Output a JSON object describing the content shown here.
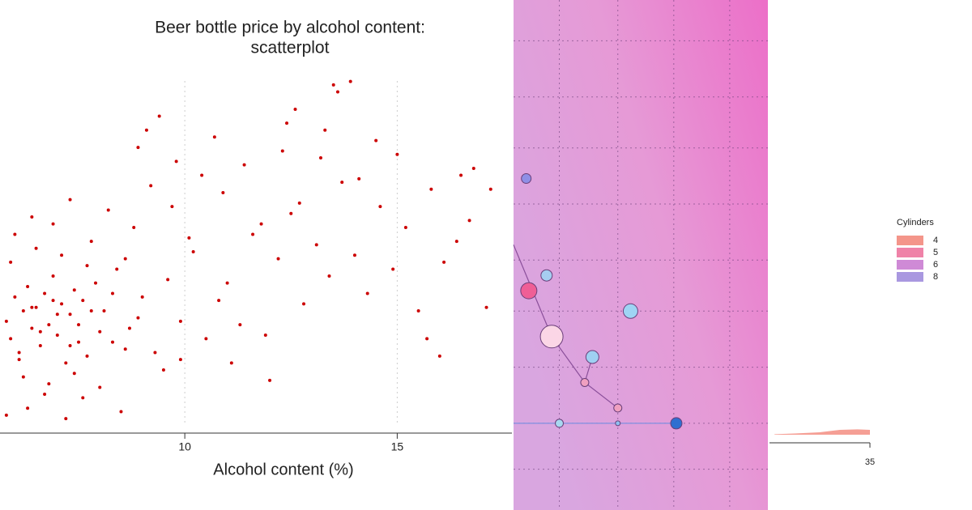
{
  "chart_data": [
    {
      "type": "scatter",
      "title": [
        "Beer bottle price by alcohol content:",
        "scatterplot"
      ],
      "x_label": "Alcohol content (%)",
      "xlim": [
        5.65,
        17.7
      ],
      "xticks": [
        10,
        15
      ],
      "ylim": [
        0,
        10.2
      ],
      "color": "#cc0000",
      "grid": true,
      "series": [
        {
          "name": null,
          "x": [
            5.8,
            5.9,
            6.0,
            6.1,
            6.2,
            6.3,
            6.4,
            6.5,
            6.6,
            6.7,
            6.8,
            6.9,
            7.0,
            7.1,
            7.2,
            7.3,
            7.4,
            7.5,
            7.6,
            7.7,
            5.9,
            6.2,
            6.5,
            6.8,
            7.1,
            7.4,
            7.7,
            8.0,
            8.3,
            8.6,
            8.1,
            8.4,
            8.7,
            9.0,
            9.3,
            9.6,
            9.9,
            10.2,
            10.5,
            10.8,
            6.0,
            6.4,
            6.9,
            7.3,
            7.8,
            8.2,
            8.8,
            9.2,
            9.7,
            10.1,
            11.0,
            11.3,
            11.6,
            11.9,
            12.2,
            12.5,
            12.8,
            13.1,
            13.4,
            13.7,
            14.0,
            14.3,
            14.6,
            14.9,
            15.2,
            15.5,
            15.8,
            16.1,
            16.4,
            16.7,
            10.4,
            10.9,
            11.4,
            11.8,
            12.3,
            12.7,
            13.2,
            13.6,
            14.1,
            14.5,
            9.1,
            9.4,
            8.9,
            9.8,
            12.6,
            13.5,
            13.9,
            15.0,
            16.8,
            17.2,
            5.8,
            6.3,
            6.7,
            7.2,
            7.6,
            8.0,
            8.5,
            9.5,
            11.1,
            12.0,
            16.0,
            17.1,
            15.7,
            16.5,
            13.3,
            12.4,
            10.7,
            9.9,
            8.6,
            7.9,
            6.1,
            6.6,
            7.0,
            7.5,
            7.3,
            6.9,
            6.4,
            7.8,
            8.3,
            8.9
          ],
          "values": [
            3.1,
            2.6,
            3.8,
            2.2,
            3.4,
            4.1,
            2.9,
            3.5,
            2.4,
            3.9,
            3.0,
            4.4,
            2.7,
            3.6,
            1.9,
            3.3,
            4.0,
            2.5,
            3.7,
            2.1,
            4.8,
            1.5,
            5.2,
            1.3,
            5.0,
            1.6,
            4.7,
            2.8,
            3.9,
            2.3,
            3.4,
            4.6,
            2.9,
            3.8,
            2.2,
            4.3,
            3.1,
            5.1,
            2.6,
            3.7,
            5.6,
            6.1,
            5.9,
            6.6,
            5.4,
            6.3,
            5.8,
            7.0,
            6.4,
            5.5,
            4.2,
            3.0,
            5.6,
            2.7,
            4.9,
            6.2,
            3.6,
            5.3,
            4.4,
            7.1,
            5.0,
            3.9,
            6.4,
            4.6,
            5.8,
            3.4,
            6.9,
            4.8,
            5.4,
            6.0,
            7.3,
            6.8,
            7.6,
            5.9,
            8.0,
            6.5,
            7.8,
            9.7,
            7.2,
            8.3,
            8.6,
            9.0,
            8.1,
            7.7,
            9.2,
            9.9,
            10.0,
            7.9,
            7.5,
            6.9,
            0.4,
            0.6,
            1.0,
            0.3,
            0.9,
            1.2,
            0.5,
            1.7,
            1.9,
            1.4,
            2.1,
            3.5,
            2.6,
            7.3,
            8.6,
            8.8,
            8.4,
            2.0,
            4.9,
            4.2,
            2.0,
            2.8,
            3.3,
            3.0,
            2.4,
            3.7,
            3.5,
            3.4,
            2.5,
            3.2
          ]
        }
      ]
    },
    {
      "type": "bubble",
      "xlim": [
        0,
        10
      ],
      "ylim": [
        0,
        10
      ],
      "xgrid": [
        1.8,
        4.1,
        6.3,
        8.5
      ],
      "ygrid": [
        9.2,
        8.1,
        7.1,
        6.0,
        4.9,
        3.9,
        2.8,
        1.7,
        0.8
      ],
      "points": {
        "x": [
          0.5,
          1.3,
          0.6,
          4.6,
          1.5,
          3.1,
          2.8,
          4.1,
          1.8,
          4.1,
          6.4
        ],
        "values": [
          6.5,
          4.6,
          4.3,
          3.9,
          3.4,
          3.0,
          2.5,
          2.0,
          1.7,
          1.7,
          1.7
        ],
        "sizes": [
          6,
          7,
          10,
          9,
          14,
          8,
          5,
          5,
          5,
          3,
          7
        ],
        "colors": [
          "#8f8fe6",
          "#a6cdf0",
          "#ef5f96",
          "#9fd4f4",
          "#fbd6e6",
          "#9fd0f2",
          "#f0a0c0",
          "#f0a0c0",
          "#a8d8f0",
          "#8fc0f0",
          "#2f6fd0"
        ]
      },
      "lines": [
        {
          "color": "#8a4f9a",
          "x": [
            0,
            1.5,
            2.8,
            4.1
          ],
          "values": [
            5.2,
            3.4,
            2.5,
            2.0
          ]
        },
        {
          "color": "#8a4f9a",
          "x": [
            2.8,
            3.1
          ],
          "values": [
            2.5,
            3.0
          ]
        },
        {
          "color": "#7f8fe0",
          "x": [
            0,
            6.4
          ],
          "values": [
            1.7,
            1.7
          ]
        }
      ]
    },
    {
      "type": "density",
      "legend_title": "Cylinders",
      "xlim": [
        31,
        35
      ],
      "xticks": [
        35
      ],
      "ylim": [
        0,
        1
      ],
      "series": [
        {
          "name": "4",
          "color": "#f4958a",
          "x": [
            31.2,
            32,
            33,
            33.8,
            34.5,
            35
          ],
          "values": [
            0.02,
            0.05,
            0.1,
            0.2,
            0.22,
            0.2
          ]
        },
        {
          "name": "5",
          "color": "#ef82a8"
        },
        {
          "name": "6",
          "color": "#cf8ad6"
        },
        {
          "name": "8",
          "color": "#a998e0"
        }
      ]
    }
  ]
}
